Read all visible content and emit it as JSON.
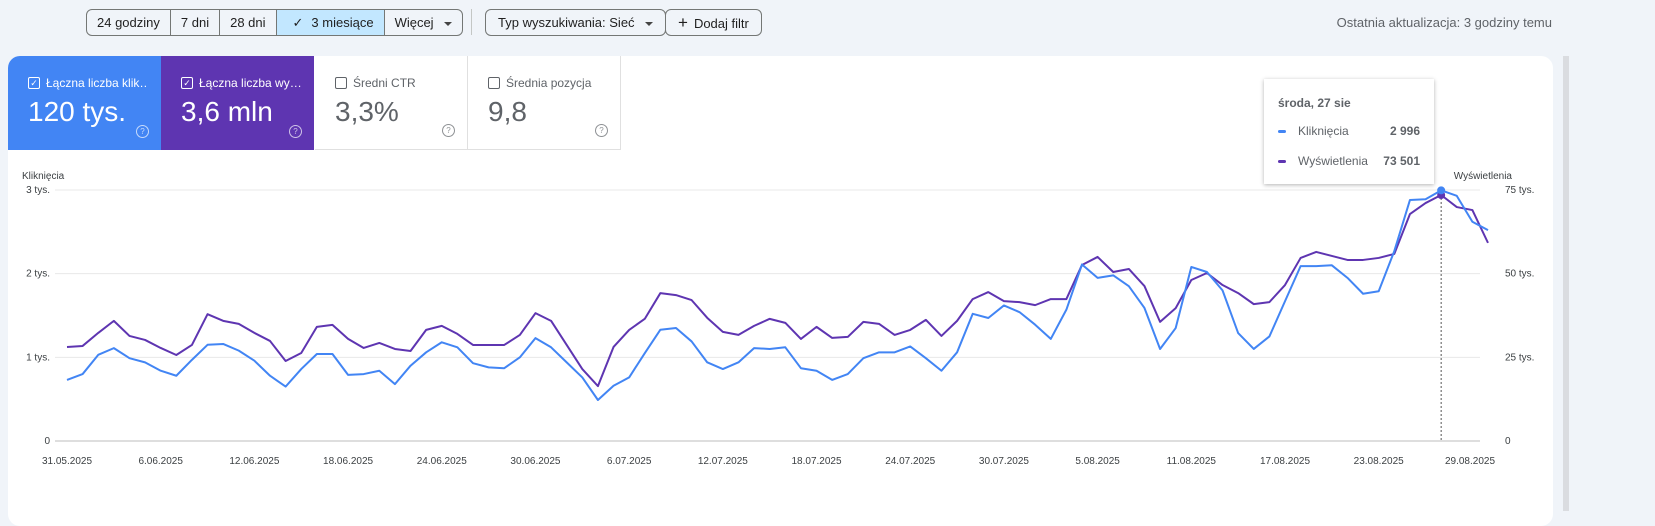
{
  "toolbar": {
    "ranges": [
      "24 godziny",
      "7 dni",
      "28 dni",
      "3 miesiące",
      "Więcej"
    ],
    "selected_range": "3 miesiące",
    "search_type": "Typ wyszukiwania: Sieć",
    "add_filter": "Dodaj filtr",
    "last_update": "Ostatnia aktualizacja: 3 godziny temu"
  },
  "metrics": [
    {
      "label": "Łączna liczba klik…",
      "value": "120 tys.",
      "checked": true,
      "color": "#4285f4"
    },
    {
      "label": "Łączna liczba wy…",
      "value": "3,6 mln",
      "checked": true,
      "color": "#5e35b1"
    },
    {
      "label": "Średni CTR",
      "value": "3,3%",
      "checked": false
    },
    {
      "label": "Średnia pozycja",
      "value": "9,8",
      "checked": false
    }
  ],
  "tooltip": {
    "date": "środa, 27 sie",
    "rows": [
      {
        "label": "Kliknięcia",
        "value": "2 996",
        "color": "#4285f4"
      },
      {
        "label": "Wyświetlenia",
        "value": "73 501",
        "color": "#5e35b1"
      }
    ]
  },
  "chart_data": {
    "type": "line",
    "left_axis_label": "Kliknięcia",
    "right_axis_label": "Wyświetlenia",
    "left_ticks": [
      "0",
      "1 tys.",
      "2 tys.",
      "3 tys."
    ],
    "right_ticks": [
      "0",
      "25 tys.",
      "50 tys.",
      "75 tys."
    ],
    "left_range": [
      0,
      3000
    ],
    "right_range": [
      0,
      75000
    ],
    "grid": true,
    "x_start": "31.05.2025",
    "x_end": "30.08.2025",
    "x_tick_labels": [
      "31.05.2025",
      "6.06.2025",
      "12.06.2025",
      "18.06.2025",
      "24.06.2025",
      "30.06.2025",
      "6.07.2025",
      "12.07.2025",
      "18.07.2025",
      "24.07.2025",
      "30.07.2025",
      "5.08.2025",
      "11.08.2025",
      "17.08.2025",
      "23.08.2025",
      "29.08.2025"
    ],
    "highlight_date": "27.08.2025",
    "series": [
      {
        "name": "Kliknięcia",
        "axis": "left",
        "color": "#4285f4",
        "values": [
          730,
          800,
          1030,
          1110,
          990,
          940,
          840,
          780,
          970,
          1150,
          1160,
          1080,
          960,
          780,
          650,
          860,
          1040,
          1040,
          790,
          800,
          840,
          680,
          900,
          1060,
          1180,
          1120,
          930,
          880,
          870,
          1000,
          1230,
          1120,
          940,
          760,
          490,
          660,
          760,
          1050,
          1330,
          1350,
          1190,
          940,
          860,
          940,
          1110,
          1100,
          1120,
          870,
          840,
          730,
          800,
          990,
          1060,
          1060,
          1130,
          990,
          840,
          1060,
          1520,
          1470,
          1620,
          1540,
          1390,
          1220,
          1570,
          2110,
          1950,
          1980,
          1850,
          1590,
          1100,
          1350,
          2080,
          2020,
          1800,
          1290,
          1100,
          1250,
          1670,
          2090,
          2090,
          2100,
          1950,
          1760,
          1790,
          2270,
          2880,
          2890,
          2996,
          2930,
          2620,
          2520
        ]
      },
      {
        "name": "Wyświetlenia",
        "axis": "right",
        "color": "#5e35b1",
        "values": [
          28100,
          28400,
          32300,
          35900,
          31400,
          30200,
          27800,
          25700,
          28700,
          37900,
          35900,
          35000,
          32300,
          29900,
          23900,
          26300,
          34100,
          34700,
          30500,
          27800,
          29300,
          27500,
          26900,
          33200,
          34400,
          32000,
          28700,
          28700,
          28700,
          31700,
          38200,
          35900,
          28700,
          21500,
          16400,
          28100,
          33200,
          36500,
          44200,
          43600,
          42100,
          36800,
          32600,
          31700,
          34400,
          36500,
          35300,
          30500,
          34100,
          30800,
          31100,
          35600,
          35000,
          31700,
          33200,
          36200,
          31400,
          35900,
          42400,
          44500,
          41800,
          41500,
          40600,
          42400,
          42400,
          52600,
          55000,
          50500,
          51400,
          46300,
          35600,
          39700,
          48100,
          50200,
          46600,
          44200,
          40900,
          41500,
          46600,
          54700,
          56500,
          55300,
          54100,
          54100,
          54700,
          55900,
          67800,
          71100,
          73501,
          69900,
          69000,
          59200
        ]
      }
    ]
  }
}
